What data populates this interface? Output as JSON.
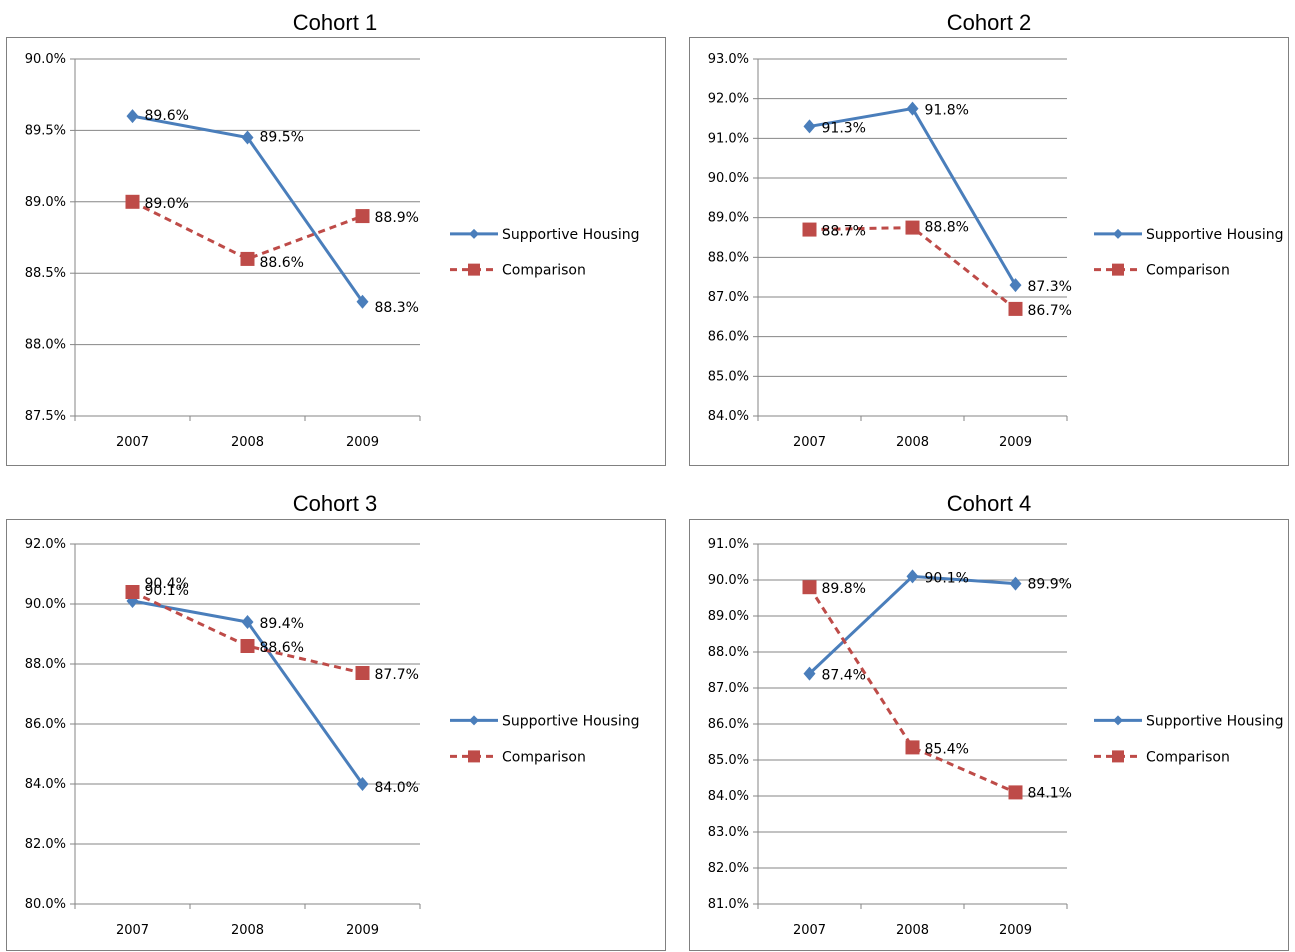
{
  "colors": {
    "supportive": "#4a7ebb",
    "comparison": "#be4b48",
    "grid": "#868686",
    "axis": "#868686"
  },
  "chart_data": [
    {
      "type": "line",
      "title": "Cohort 1",
      "categories": [
        "2007",
        "2008",
        "2009"
      ],
      "ylim": [
        87.5,
        90.0
      ],
      "ystep": 0.5,
      "ytick_labels": [
        "87.5%",
        "88.0%",
        "88.5%",
        "89.0%",
        "89.5%",
        "90.0%"
      ],
      "grid": true,
      "legend": "right",
      "series": [
        {
          "name": "Supportive Housing",
          "values": [
            89.6,
            89.45,
            88.3
          ],
          "labels": [
            "89.6%",
            "89.5%",
            "88.3%"
          ]
        },
        {
          "name": "Comparison",
          "values": [
            89.0,
            88.6,
            88.9
          ],
          "labels": [
            "89.0%",
            "88.6%",
            "88.9%"
          ]
        }
      ]
    },
    {
      "type": "line",
      "title": "Cohort 2",
      "categories": [
        "2007",
        "2008",
        "2009"
      ],
      "ylim": [
        84.0,
        93.0
      ],
      "ystep": 1.0,
      "ytick_labels": [
        "84.0%",
        "85.0%",
        "86.0%",
        "87.0%",
        "88.0%",
        "89.0%",
        "90.0%",
        "91.0%",
        "92.0%",
        "93.0%"
      ],
      "grid": true,
      "legend": "right",
      "series": [
        {
          "name": "Supportive Housing",
          "values": [
            91.3,
            91.75,
            87.3
          ],
          "labels": [
            "91.3%",
            "91.8%",
            "87.3%"
          ]
        },
        {
          "name": "Comparison",
          "values": [
            88.7,
            88.75,
            86.7
          ],
          "labels": [
            "88.7%",
            "88.8%",
            "86.7%"
          ]
        }
      ]
    },
    {
      "type": "line",
      "title": "Cohort 3",
      "categories": [
        "2007",
        "2008",
        "2009"
      ],
      "ylim": [
        80.0,
        92.0
      ],
      "ystep": 2.0,
      "ytick_labels": [
        "80.0%",
        "82.0%",
        "84.0%",
        "86.0%",
        "88.0%",
        "90.0%",
        "92.0%"
      ],
      "grid": true,
      "legend": "right",
      "series": [
        {
          "name": "Supportive Housing",
          "values": [
            90.1,
            89.4,
            84.0
          ],
          "labels": [
            "90.1%",
            "89.4%",
            "84.0%"
          ]
        },
        {
          "name": "Comparison",
          "values": [
            90.4,
            88.6,
            87.7
          ],
          "labels": [
            "90.4%",
            "88.6%",
            "87.7%"
          ]
        }
      ]
    },
    {
      "type": "line",
      "title": "Cohort 4",
      "categories": [
        "2007",
        "2008",
        "2009"
      ],
      "ylim": [
        81.0,
        91.0
      ],
      "ystep": 1.0,
      "ytick_labels": [
        "81.0%",
        "82.0%",
        "83.0%",
        "84.0%",
        "85.0%",
        "86.0%",
        "87.0%",
        "88.0%",
        "89.0%",
        "90.0%",
        "91.0%"
      ],
      "grid": true,
      "legend": "right",
      "series": [
        {
          "name": "Supportive Housing",
          "values": [
            87.4,
            90.1,
            89.9
          ],
          "labels": [
            "87.4%",
            "90.1%",
            "89.9%"
          ]
        },
        {
          "name": "Comparison",
          "values": [
            89.8,
            85.35,
            84.1
          ],
          "labels": [
            "89.8%",
            "85.4%",
            "84.1%"
          ]
        }
      ]
    }
  ]
}
